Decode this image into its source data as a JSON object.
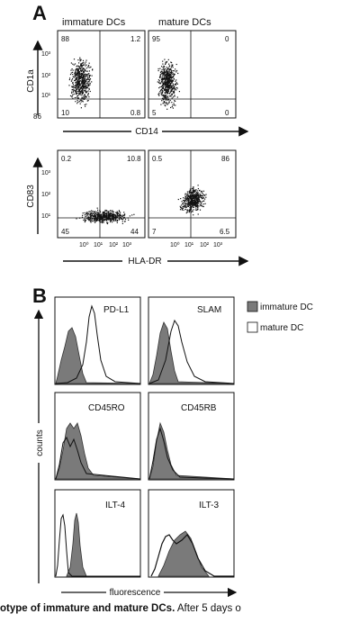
{
  "panel_a": {
    "letter": "A",
    "column_headers": [
      "immature DCs",
      "mature DCs"
    ],
    "top_row": {
      "y_axis_label": "CD1a",
      "x_axis_label": "CD14",
      "plots": [
        {
          "quadrants": {
            "ul": "88",
            "ur": "1.2",
            "ll": "10",
            "lr": "0.8"
          }
        },
        {
          "quadrants": {
            "ul": "95",
            "ur": "0",
            "ll": "5",
            "lr": "0"
          }
        }
      ]
    },
    "bottom_row": {
      "y_axis_label": "CD83",
      "x_axis_label": "HLA-DR",
      "plots": [
        {
          "quadrants": {
            "ul": "0.2",
            "ur": "10.8",
            "ll": "45",
            "lr": "44"
          }
        },
        {
          "quadrants": {
            "ul": "0.5",
            "ur": "86",
            "ll": "7",
            "lr": "6.5"
          }
        }
      ]
    },
    "tick_labels": [
      "10⁰",
      "10¹",
      "10²",
      "10³"
    ],
    "left_stray_number": "86"
  },
  "panel_b": {
    "letter": "B",
    "legend": [
      {
        "label": "immature DC",
        "color": "#7a7a7a"
      },
      {
        "label": "mature DC",
        "color": "#ffffff"
      }
    ],
    "markers": [
      "PD-L1",
      "SLAM",
      "CD45RO",
      "CD45RB",
      "ILT-4",
      "ILT-3"
    ],
    "y_axis_label": "counts",
    "x_axis_label": "fluorescence"
  },
  "caption": {
    "bold": "otype of immature and mature DCs.",
    "rest": " After 5 days o"
  }
}
